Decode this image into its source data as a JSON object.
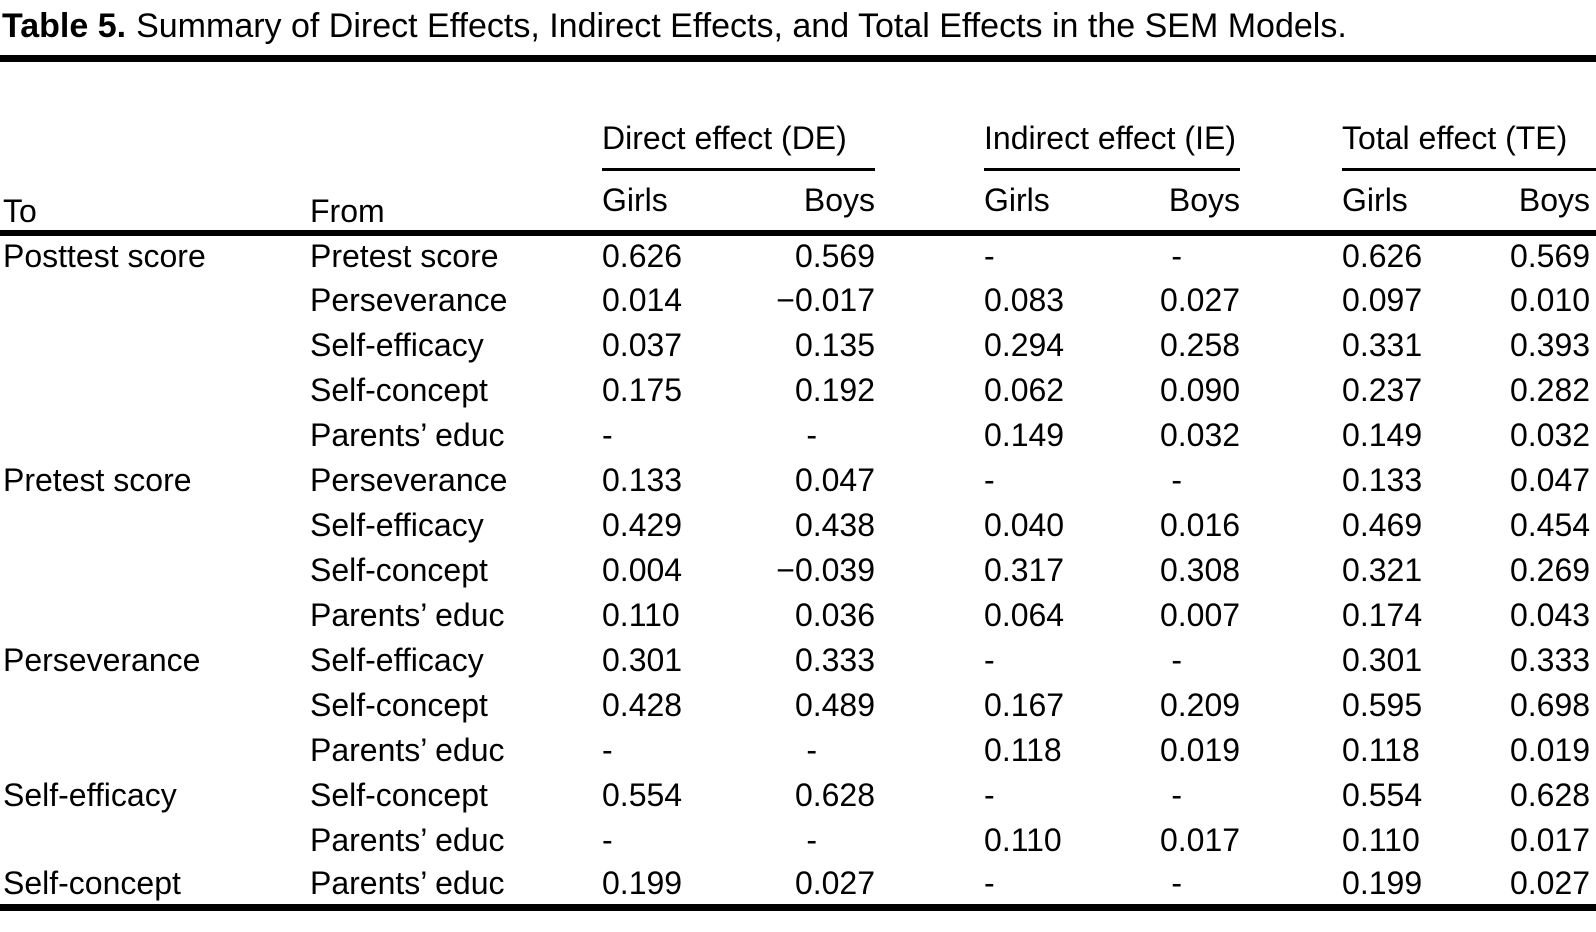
{
  "title": {
    "label": "Table 5.",
    "text": "Summary of Direct Effects, Indirect Effects, and Total Effects in the SEM Models."
  },
  "header": {
    "to": "To",
    "from": "From",
    "groups": [
      {
        "label": "Direct effect (DE)"
      },
      {
        "label": "Indirect effect (IE)"
      },
      {
        "label": "Total effect (TE)"
      }
    ],
    "subheaders": {
      "girls": "Girls",
      "boys": "Boys"
    }
  },
  "table": {
    "rows": [
      {
        "to": "Posttest score",
        "from": "Pretest score",
        "de_girls": "0.626",
        "de_boys": "0.569",
        "ie_girls": "-",
        "ie_boys": "-",
        "te_girls": "0.626",
        "te_boys": "0.569"
      },
      {
        "to": "",
        "from": "Perseverance",
        "de_girls": "0.014",
        "de_boys": "−0.017",
        "ie_girls": "0.083",
        "ie_boys": "0.027",
        "te_girls": "0.097",
        "te_boys": "0.010"
      },
      {
        "to": "",
        "from": "Self-efficacy",
        "de_girls": "0.037",
        "de_boys": "0.135",
        "ie_girls": "0.294",
        "ie_boys": "0.258",
        "te_girls": "0.331",
        "te_boys": "0.393"
      },
      {
        "to": "",
        "from": "Self-concept",
        "de_girls": "0.175",
        "de_boys": "0.192",
        "ie_girls": "0.062",
        "ie_boys": "0.090",
        "te_girls": "0.237",
        "te_boys": "0.282"
      },
      {
        "to": "",
        "from": "Parents’ educ",
        "de_girls": "-",
        "de_boys": "-",
        "ie_girls": "0.149",
        "ie_boys": "0.032",
        "te_girls": "0.149",
        "te_boys": "0.032"
      },
      {
        "to": "Pretest score",
        "from": "Perseverance",
        "de_girls": "0.133",
        "de_boys": "0.047",
        "ie_girls": "-",
        "ie_boys": "-",
        "te_girls": "0.133",
        "te_boys": "0.047"
      },
      {
        "to": "",
        "from": "Self-efficacy",
        "de_girls": "0.429",
        "de_boys": "0.438",
        "ie_girls": "0.040",
        "ie_boys": "0.016",
        "te_girls": "0.469",
        "te_boys": "0.454"
      },
      {
        "to": "",
        "from": "Self-concept",
        "de_girls": "0.004",
        "de_boys": "−0.039",
        "ie_girls": "0.317",
        "ie_boys": "0.308",
        "te_girls": "0.321",
        "te_boys": "0.269"
      },
      {
        "to": "",
        "from": "Parents’ educ",
        "de_girls": "0.110",
        "de_boys": "0.036",
        "ie_girls": "0.064",
        "ie_boys": "0.007",
        "te_girls": "0.174",
        "te_boys": "0.043"
      },
      {
        "to": "Perseverance",
        "from": "Self-efficacy",
        "de_girls": "0.301",
        "de_boys": "0.333",
        "ie_girls": "-",
        "ie_boys": "-",
        "te_girls": "0.301",
        "te_boys": "0.333"
      },
      {
        "to": "",
        "from": "Self-concept",
        "de_girls": "0.428",
        "de_boys": "0.489",
        "ie_girls": "0.167",
        "ie_boys": "0.209",
        "te_girls": "0.595",
        "te_boys": "0.698"
      },
      {
        "to": "",
        "from": "Parents’ educ",
        "de_girls": "-",
        "de_boys": "-",
        "ie_girls": "0.118",
        "ie_boys": "0.019",
        "te_girls": "0.118",
        "te_boys": "0.019"
      },
      {
        "to": "Self-efficacy",
        "from": "Self-concept",
        "de_girls": "0.554",
        "de_boys": "0.628",
        "ie_girls": "-",
        "ie_boys": "-",
        "te_girls": "0.554",
        "te_boys": "0.628"
      },
      {
        "to": "",
        "from": "Parents’ educ",
        "de_girls": "-",
        "de_boys": "-",
        "ie_girls": "0.110",
        "ie_boys": "0.017",
        "te_girls": "0.110",
        "te_boys": "0.017"
      },
      {
        "to": "Self-concept",
        "from": "Parents’ educ",
        "de_girls": "0.199",
        "de_boys": "0.027",
        "ie_girls": "-",
        "ie_boys": "-",
        "te_girls": "0.199",
        "te_boys": "0.027"
      }
    ]
  }
}
